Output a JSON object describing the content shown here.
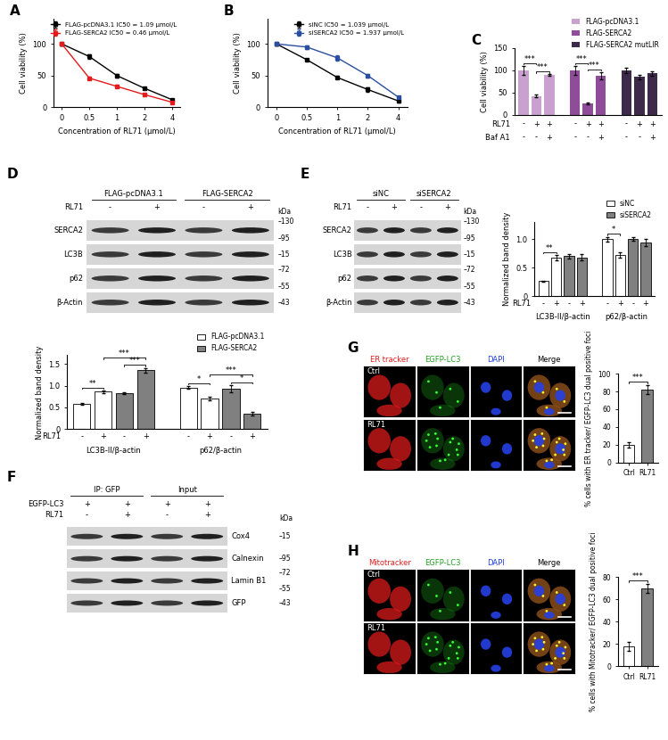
{
  "chart_data": [
    {
      "label": "A",
      "type": "line",
      "x_label": "Concentration of RL71 (μmol/L)",
      "y_label": "Cell viability (%)",
      "categories": [
        "0",
        "0.5",
        "1",
        "2",
        "4"
      ],
      "ylim": [
        0,
        140
      ],
      "yticks": [
        0,
        50,
        100
      ],
      "legend": "upper right",
      "series": [
        {
          "name": "FLAG-pcDNA3.1 IC50 = 1.09 μmol/L",
          "color": "#000000",
          "marker": "square",
          "values": [
            100,
            80,
            50,
            30,
            12
          ],
          "errors": [
            2,
            4,
            3,
            2,
            1
          ]
        },
        {
          "name": "FLAG-SERCA2 IC50 = 0.46 μmol/L",
          "color": "#e41a1c",
          "marker": "square",
          "values": [
            100,
            46,
            33,
            20,
            8
          ],
          "errors": [
            2,
            2,
            2,
            1,
            1
          ]
        }
      ]
    },
    {
      "label": "B",
      "type": "line",
      "x_label": "Concentration of RL71 (μmol/L)",
      "y_label": "Cell viability (%)",
      "categories": [
        "0",
        "0.5",
        "1",
        "2",
        "4"
      ],
      "ylim": [
        0,
        140
      ],
      "yticks": [
        0,
        50,
        100
      ],
      "legend": "upper right",
      "series": [
        {
          "name": "siNC IC50 = 1.039 μmol/L",
          "color": "#000000",
          "marker": "square",
          "values": [
            100,
            75,
            47,
            28,
            10
          ],
          "errors": [
            2,
            2,
            2,
            3,
            2
          ]
        },
        {
          "name": "siSERCA2 IC50 = 1.937 μmol/L",
          "color": "#2b4ea0",
          "marker": "square",
          "values": [
            100,
            95,
            78,
            50,
            16
          ],
          "errors": [
            2,
            3,
            4,
            3,
            2
          ]
        }
      ]
    },
    {
      "label": "C",
      "type": "grouped_bar",
      "y_label": "Cell viability (%)",
      "ylim": [
        0,
        150
      ],
      "yticks": [
        0,
        50,
        100,
        150
      ],
      "legend": "upper right",
      "tick_labels": "y",
      "condition_rows": [
        {
          "name": "RL71",
          "marks": [
            "-",
            "+",
            "+"
          ]
        },
        {
          "name": "Baf A1",
          "marks": [
            "-",
            "-",
            "+"
          ]
        }
      ],
      "series": [
        {
          "name": "FLAG-pcDNA3.1",
          "color": "#c9a0cf",
          "values": [
            100,
            42,
            89
          ],
          "errors": [
            10,
            3,
            2
          ]
        },
        {
          "name": "FLAG-SERCA2",
          "color": "#8e4c99",
          "values": [
            100,
            25,
            88
          ],
          "errors": [
            10,
            2,
            8
          ]
        },
        {
          "name": "FLAG-SERCA2 mutLIR",
          "color": "#3d2a4b",
          "values": [
            100,
            85,
            93
          ],
          "errors": [
            6,
            5,
            5
          ]
        }
      ],
      "significance": [
        {
          "series": 0,
          "from": 0,
          "to": 1,
          "label": "***"
        },
        {
          "series": 0,
          "from": 1,
          "to": 2,
          "label": "***"
        },
        {
          "series": 1,
          "from": 0,
          "to": 1,
          "label": "***"
        },
        {
          "series": 1,
          "from": 1,
          "to": 2,
          "label": "***"
        }
      ]
    },
    {
      "type": "grouped_bar",
      "y_label": "Normalized band density",
      "categories": [
        "LC3B-II/β-actin",
        "p62/β-actin"
      ],
      "conditions": {
        "name": "RL71",
        "marks": [
          "-",
          "+"
        ]
      },
      "ylim": [
        0,
        1.7
      ],
      "yticks": [
        0,
        0.5,
        {
          "value": 1,
          "label": "1.0"
        },
        1.5
      ],
      "legend": "upper right",
      "series": [
        {
          "name": "FLAG-pcDNA3.1",
          "color": "#ffffff",
          "values": [
            [
              0.58,
              0.86
            ],
            [
              0.96,
              0.7
            ]
          ],
          "errors": [
            [
              0.02,
              0.03
            ],
            [
              0.03,
              0.04
            ]
          ]
        },
        {
          "name": "FLAG-SERCA2",
          "color": "#808080",
          "values": [
            [
              0.82,
              1.35
            ],
            [
              0.93,
              0.36
            ]
          ],
          "errors": [
            [
              0.02,
              0.06
            ],
            [
              0.08,
              0.04
            ]
          ]
        }
      ],
      "significance": [
        {
          "category": 0,
          "from": 0,
          "to": 1,
          "label": "**"
        },
        {
          "category": 0,
          "from": 2,
          "to": 3,
          "label": "***"
        },
        {
          "category": 0,
          "from": 1,
          "to": 3,
          "label": "***"
        },
        {
          "category": 1,
          "from": 0,
          "to": 1,
          "label": "*"
        },
        {
          "category": 1,
          "from": 1,
          "to": 3,
          "label": "***"
        },
        {
          "category": 1,
          "from": 2,
          "to": 3,
          "label": "*"
        }
      ]
    },
    {
      "type": "grouped_bar",
      "y_label": "Normalized band density",
      "categories": [
        "LC3B-II/β-actin",
        "p62/β-actin"
      ],
      "conditions": {
        "name": "RL71",
        "marks": [
          "-",
          "+"
        ]
      },
      "ylim": [
        0,
        1.3
      ],
      "yticks": [
        0,
        0.5,
        {
          "value": 1,
          "label": "1.0"
        }
      ],
      "legend": "upper right",
      "series": [
        {
          "name": "siNC",
          "color": "#ffffff",
          "values": [
            [
              0.26,
              0.67
            ],
            [
              1.0,
              0.72
            ]
          ],
          "errors": [
            [
              0.01,
              0.05
            ],
            [
              0.04,
              0.05
            ]
          ]
        },
        {
          "name": "siSERCA2",
          "color": "#808080",
          "values": [
            [
              0.7,
              0.68
            ],
            [
              1.0,
              0.94
            ]
          ],
          "errors": [
            [
              0.04,
              0.06
            ],
            [
              0.03,
              0.06
            ]
          ]
        }
      ],
      "significance": [
        {
          "category": 0,
          "from": 0,
          "to": 1,
          "label": "**"
        },
        {
          "category": 1,
          "from": 0,
          "to": 1,
          "label": "*"
        }
      ]
    },
    {
      "type": "bar",
      "y_label": "% cells with ER tracker/ EGFP-LC3 dual positive foci",
      "categories": [
        "Ctrl",
        "RL71"
      ],
      "values": [
        20,
        82
      ],
      "errors": [
        3,
        5
      ],
      "colors": [
        "#ffffff",
        "#808080"
      ],
      "ylim": [
        0,
        100
      ],
      "yticks": [
        0,
        20,
        40,
        60,
        80,
        100
      ],
      "significance": [
        {
          "from": 0,
          "to": 1,
          "label": "***"
        }
      ]
    },
    {
      "type": "bar",
      "y_label": "% cells with Mitotracker/ EGFP-LC3 dual positive foci",
      "categories": [
        "Ctrl",
        "RL71"
      ],
      "values": [
        18,
        70
      ],
      "errors": [
        4,
        4
      ],
      "colors": [
        "#ffffff",
        "#808080"
      ],
      "ylim": [
        0,
        80
      ],
      "yticks": [
        0,
        20,
        40,
        60,
        80
      ],
      "significance": [
        {
          "from": 0,
          "to": 1,
          "label": "***"
        }
      ]
    }
  ],
  "blots": [
    {
      "label": "D",
      "groups": [
        {
          "name": "FLAG-pcDNA3.1",
          "lanes": 2
        },
        {
          "name": "FLAG-SERCA2",
          "lanes": 2
        }
      ],
      "conditions": [
        {
          "name": "RL71",
          "marks": [
            "-",
            "+",
            "-",
            "+"
          ]
        }
      ],
      "unit": "kDa",
      "rows": [
        {
          "name": "SERCA2",
          "kda": [
            130,
            95
          ]
        },
        {
          "name": "LC3B",
          "kda": [
            15
          ]
        },
        {
          "name": "p62",
          "kda": [
            72,
            55
          ]
        },
        {
          "name": "β-Actin",
          "kda": [
            43
          ]
        }
      ]
    },
    {
      "label": "E",
      "groups": [
        {
          "name": "siNC",
          "lanes": 2
        },
        {
          "name": "siSERCA2",
          "lanes": 2
        }
      ],
      "conditions": [
        {
          "name": "RL71",
          "marks": [
            "-",
            "+",
            "-",
            "+"
          ]
        }
      ],
      "unit": "kDa",
      "rows": [
        {
          "name": "SERCA2",
          "kda": [
            130,
            95
          ]
        },
        {
          "name": "LC3B",
          "kda": [
            15
          ]
        },
        {
          "name": "p62",
          "kda": [
            72,
            55
          ]
        },
        {
          "name": "β-Actin",
          "kda": [
            43
          ]
        }
      ]
    },
    {
      "label": "F",
      "groups": [
        {
          "name": "IP: GFP",
          "lanes": 2
        },
        {
          "name": "Input",
          "lanes": 2
        }
      ],
      "conditions": [
        {
          "name": "EGFP-LC3",
          "marks": [
            "+",
            "+",
            "+",
            "+"
          ]
        },
        {
          "name": "RL71",
          "marks": [
            "-",
            "+",
            "-",
            "+"
          ]
        }
      ],
      "unit": "kDa",
      "rows": [
        {
          "name": "Cox4",
          "kda": [
            15
          ]
        },
        {
          "name": "Calnexin",
          "kda": [
            95
          ]
        },
        {
          "name": "Lamin B1",
          "kda": [
            72,
            55
          ]
        },
        {
          "name": "GFP",
          "kda": [
            43
          ]
        }
      ]
    }
  ],
  "micrographs": [
    {
      "label": "G",
      "columns": [
        "ER tracker",
        "EGFP-LC3",
        "DAPI",
        "Merge"
      ],
      "rows": [
        "Ctrl",
        "RL71"
      ]
    },
    {
      "label": "H",
      "columns": [
        "Mitotracker",
        "EGFP-LC3",
        "DAPI",
        "Merge"
      ],
      "rows": [
        "Ctrl",
        "RL71"
      ]
    }
  ]
}
